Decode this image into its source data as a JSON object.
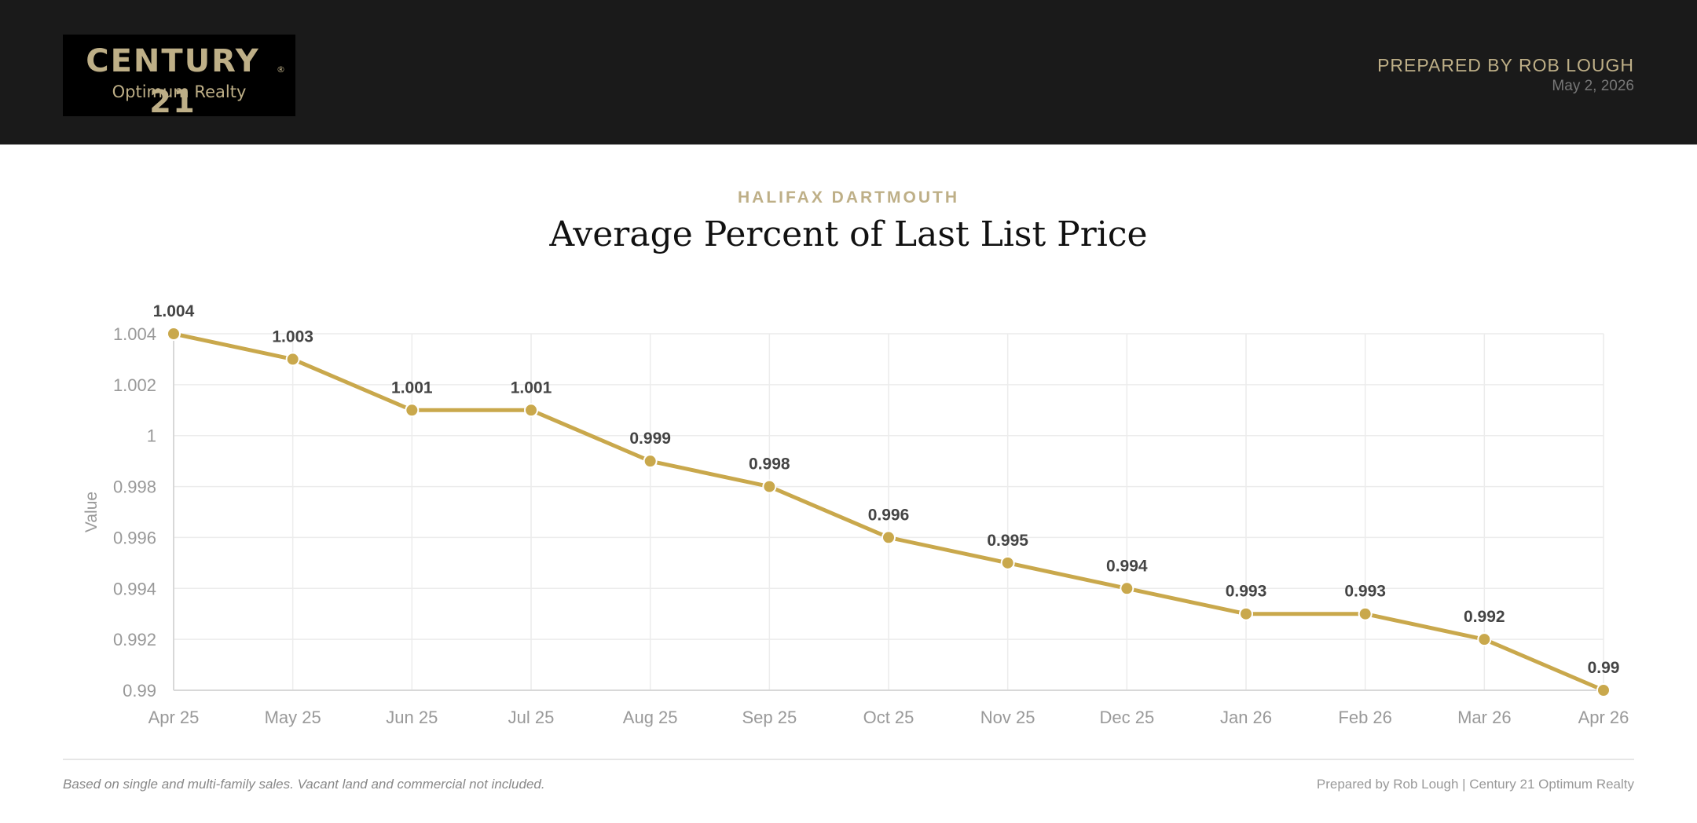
{
  "header": {
    "logo_main": "CENTURY 21",
    "logo_reg": "®",
    "logo_sub": "Optimum Realty",
    "prepared_by": "PREPARED BY ROB LOUGH",
    "date": "May 2, 2026"
  },
  "report": {
    "region": "HALIFAX DARTMOUTH",
    "title": "Average Percent of Last List Price"
  },
  "chart_data": {
    "type": "line",
    "categories": [
      "Apr 25",
      "May 25",
      "Jun 25",
      "Jul 25",
      "Aug 25",
      "Sep 25",
      "Oct 25",
      "Nov 25",
      "Dec 25",
      "Jan 26",
      "Feb 26",
      "Mar 26",
      "Apr 26"
    ],
    "values": [
      1.004,
      1.003,
      1.001,
      1.001,
      0.999,
      0.998,
      0.996,
      0.995,
      0.994,
      0.993,
      0.993,
      0.992,
      0.99
    ],
    "data_labels": [
      "1.004",
      "1.003",
      "1.001",
      "1.001",
      "0.999",
      "0.998",
      "0.996",
      "0.995",
      "0.994",
      "0.993",
      "0.993",
      "0.992",
      "0.99"
    ],
    "yticks": [
      1.004,
      1.002,
      1,
      0.998,
      0.996,
      0.994,
      0.992,
      0.99
    ],
    "ytick_labels": [
      "1.004",
      "1.002",
      "1",
      "0.998",
      "0.996",
      "0.994",
      "0.992",
      "0.99"
    ],
    "ylabel": "Value",
    "xlabel": "",
    "ylim": [
      0.99,
      1.004
    ],
    "grid": true,
    "line_color": "#c9a84c"
  },
  "footer": {
    "note": "Based on single and multi-family sales. Vacant land and commercial not included.",
    "credit": "Prepared by Rob Lough | Century 21 Optimum Realty"
  }
}
